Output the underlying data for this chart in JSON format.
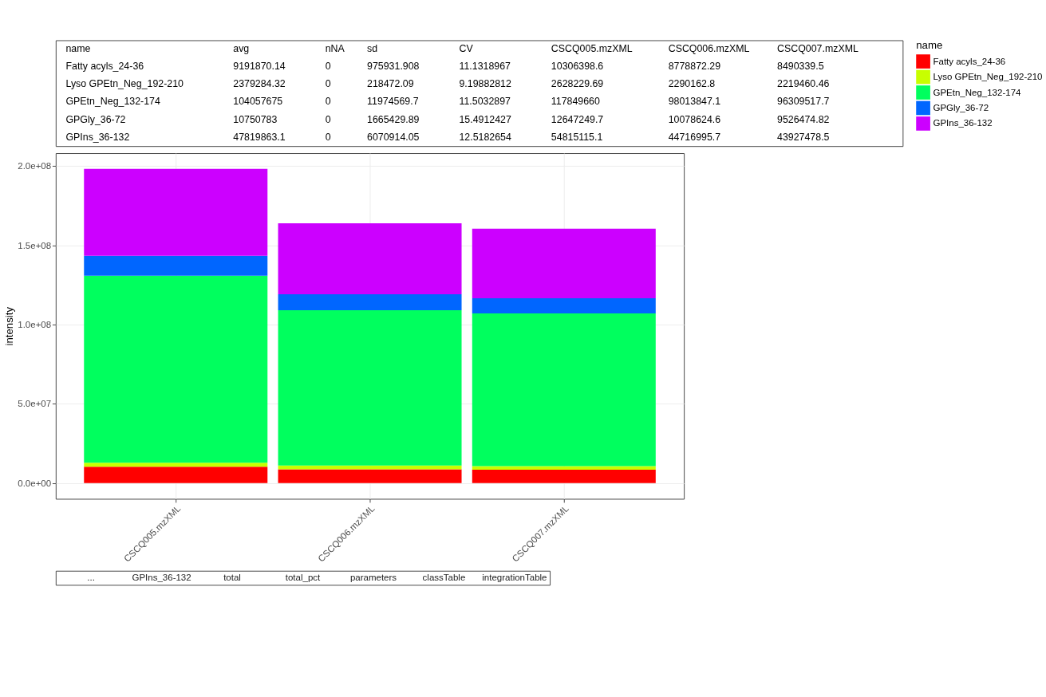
{
  "chart_data": [
    {
      "type": "other",
      "annotations": [
        "name\tavg\tnNA\tsd\tCV\tCSCQ005.mzXML\tCSCQ006.mzXML\tCSCQ007.mzXML",
        "Fatty acyls_24-36\t9191870.14\t0\t975931.908\t11.1318967\t10306398.6\t8778872.29\t8490339.5",
        "Lyso GPEtn_Neg_192-210\t2379284.32\t0\t218472.09\t9.19882812\t2628229.69\t2290162.8\t2219460.46",
        "GPEtn_Neg_132-174\t104057675\t0\t11974569.7\t11.5032897\t117849660\t98013847.1\t96309517.7",
        "GPGly_36-72\t10750783\t0\t1665429.89\t15.4912427\t12647249.7\t10078624.6\t9526474.82",
        "GPIns_36-132\t47819863.1\t0\t6070914.05\t12.5182654\t54815115.1\t44716995.7\t43927478.5"
      ]
    },
    {
      "type": "bar",
      "stacked": true,
      "ylabel": "intensity",
      "legend_title": "name",
      "legend": "right",
      "grid": true,
      "categories": [
        "CSCQ005.mzXML",
        "CSCQ006.mzXML",
        "CSCQ007.mzXML"
      ],
      "ylim": [
        -9900000,
        208100000
      ],
      "yticks": [
        {
          "value": 0,
          "label": "0.0e+00"
        },
        {
          "value": 50000000,
          "label": "5.0e+07"
        },
        {
          "value": 100000000,
          "label": "1.0e+08"
        },
        {
          "value": 150000000,
          "label": "1.5e+08"
        },
        {
          "value": 200000000,
          "label": "2.0e+08"
        }
      ],
      "series": [
        {
          "name": "Fatty acyls_24-36",
          "color": "#ff0000",
          "values": [
            10306398.6,
            8778872.29,
            8490339.5
          ]
        },
        {
          "name": "Lyso GPEtn_Neg_192-210",
          "color": "#c8ff00",
          "values": [
            2628229.69,
            2290162.8,
            2219460.46
          ]
        },
        {
          "name": "GPEtn_Neg_132-174",
          "color": "#00ff5e",
          "values": [
            117849660,
            98013847.1,
            96309517.7
          ]
        },
        {
          "name": "GPGly_36-72",
          "color": "#0066ff",
          "values": [
            12647249.7,
            10078624.6,
            9526474.82
          ]
        },
        {
          "name": "GPIns_36-132",
          "color": "#cc00ff",
          "values": [
            54815115.1,
            44716995.7,
            43927478.5
          ]
        }
      ]
    },
    {
      "type": "other",
      "annotations": [
        "...",
        "GPIns_36-132",
        "total",
        "total_pct",
        "parameters",
        "classTable",
        "integrationTable"
      ]
    }
  ]
}
